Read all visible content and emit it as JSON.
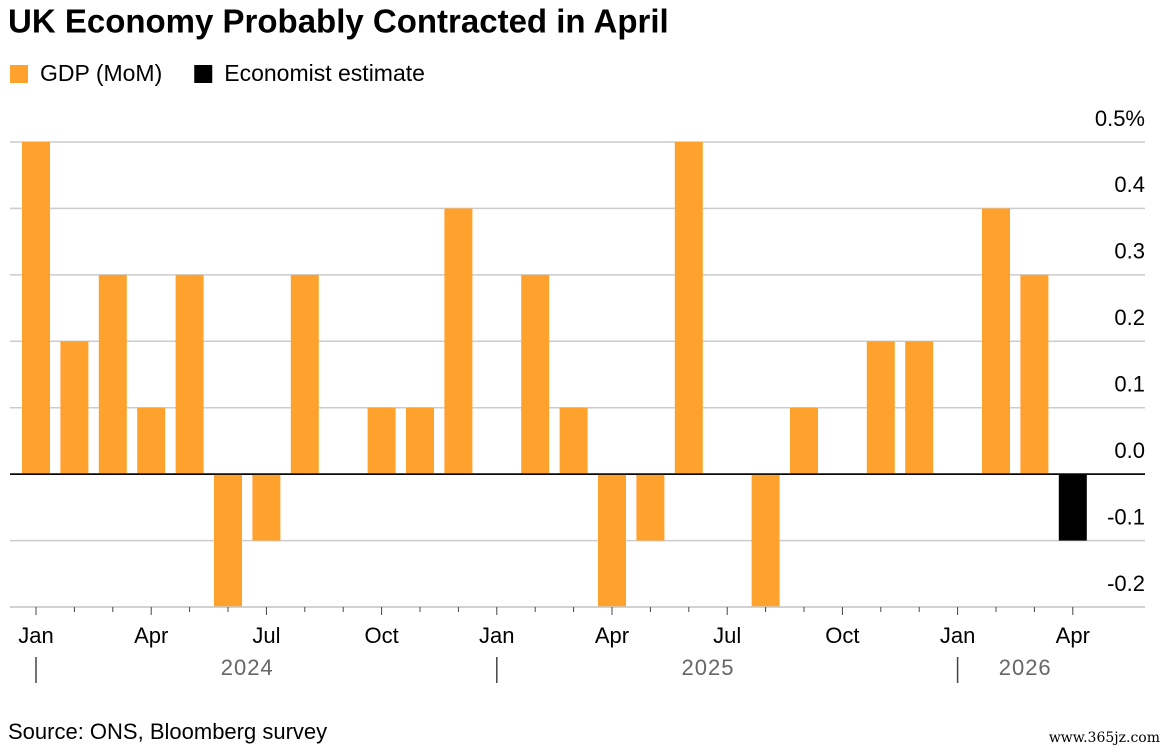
{
  "chart_data": {
    "type": "bar",
    "title": "UK Economy Probably Contracted in April",
    "categories": [
      "Jan",
      null,
      null,
      "Apr",
      null,
      null,
      "Jul",
      null,
      null,
      "Oct",
      null,
      null,
      "Jan",
      null,
      null,
      "Apr",
      null,
      null,
      "Jul",
      null,
      null,
      "Oct",
      null,
      null,
      "Jan",
      null,
      null,
      "Apr"
    ],
    "years": [
      "2024",
      "2025",
      "2026"
    ],
    "series": [
      {
        "name": "GDP (MoM)",
        "color": "#ffa22d",
        "values": [
          0.5,
          0.2,
          0.3,
          0.1,
          0.3,
          -0.2,
          -0.1,
          0.3,
          0,
          0.1,
          0.1,
          0.4,
          0,
          0.3,
          0.1,
          -0.2,
          -0.1,
          0.5,
          0,
          -0.2,
          0.1,
          0,
          0.2,
          0.2,
          0,
          0.4,
          0.3,
          null
        ]
      },
      {
        "name": "Economist estimate",
        "color": "#000000",
        "values": [
          null,
          null,
          null,
          null,
          null,
          null,
          null,
          null,
          null,
          null,
          null,
          null,
          null,
          null,
          null,
          null,
          null,
          null,
          null,
          null,
          null,
          null,
          null,
          null,
          null,
          null,
          null,
          -0.1
        ]
      }
    ],
    "ylim": [
      -0.2,
      0.5
    ],
    "yticks": [
      {
        "value": 0.5,
        "label": "0.5%"
      },
      0.4,
      0.3,
      0.2,
      0.1,
      {
        "value": 0,
        "label": "0.0"
      },
      -0.1,
      -0.2
    ],
    "grid": true,
    "source": "Source: ONS, Bloomberg survey",
    "watermark": "www.365jz.com"
  }
}
